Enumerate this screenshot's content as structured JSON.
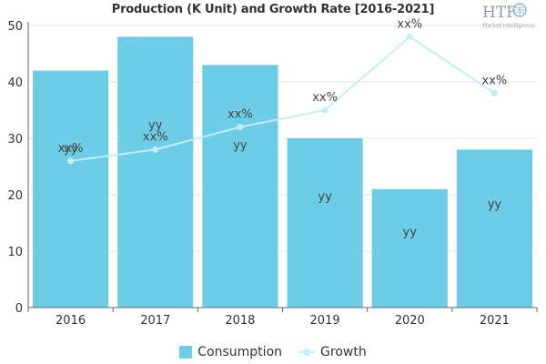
{
  "chart_data": {
    "type": "bar",
    "title": "Production (K Unit) and Growth Rate [2016-2021]",
    "categories": [
      "2016",
      "2017",
      "2018",
      "2019",
      "2020",
      "2021"
    ],
    "ylim": [
      0,
      50
    ],
    "yticks": [
      0,
      10,
      20,
      30,
      40,
      50
    ],
    "grid": true,
    "legend_position": "bottom",
    "series": [
      {
        "name": "Consumption",
        "type": "bar",
        "color": "#6ecde6",
        "values": [
          42,
          48,
          43,
          30,
          21,
          28
        ],
        "data_labels": [
          "yy",
          "yy",
          "yy",
          "yy",
          "yy",
          "yy"
        ]
      },
      {
        "name": "Growth",
        "type": "line",
        "color": "#c4eef7",
        "values": [
          26,
          28,
          32,
          35,
          48,
          38
        ],
        "data_labels": [
          "xx%",
          "xx%",
          "xx%",
          "xx%",
          "xx%",
          "xx%"
        ]
      }
    ]
  },
  "logo": {
    "text": "HTF",
    "subtext": "Market Intelligence"
  }
}
